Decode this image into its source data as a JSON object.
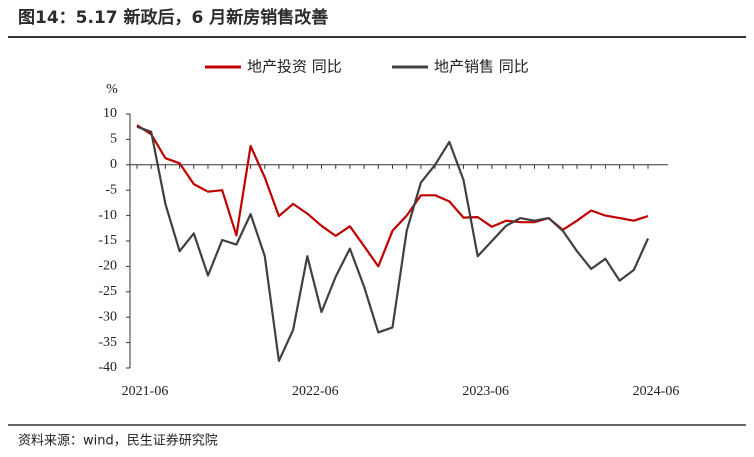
{
  "header": {
    "title": "图14：5.17 新政后，6 月新房销售改善"
  },
  "chart_data": {
    "type": "line",
    "y_unit": "%",
    "categories": [
      "2021-06",
      null,
      null,
      null,
      null,
      null,
      null,
      null,
      null,
      null,
      null,
      null,
      "2022-06",
      null,
      null,
      null,
      null,
      null,
      null,
      null,
      null,
      null,
      null,
      null,
      "2023-06",
      null,
      null,
      null,
      null,
      null,
      null,
      null,
      null,
      null,
      null,
      null,
      "2024-06"
    ],
    "series": [
      {
        "name": "地产投资 同比",
        "color": "#c00000",
        "values": [
          7.8,
          6,
          1.3,
          0.3,
          -3.8,
          -5.3,
          -5,
          -13.9,
          3.7,
          -2.5,
          -10.1,
          -7.7,
          -9.6,
          -12,
          -14,
          -12.1,
          -16,
          -20,
          -13,
          -10,
          -6,
          -6,
          -7.2,
          -10.4,
          -10.3,
          -12.2,
          -11,
          -11.3,
          -11.3,
          -10.5,
          -12.8,
          -11,
          -9,
          -10,
          -10.5,
          -11,
          -10.1
        ]
      },
      {
        "name": "地产销售 同比",
        "color": "#404040",
        "values": [
          7.5,
          6.5,
          -7.7,
          -17,
          -13.5,
          -21.8,
          -14.8,
          -15.7,
          -9.7,
          -18,
          -38.6,
          -32.5,
          -18,
          -29,
          -22,
          -16.5,
          -24,
          -33,
          -32,
          -13,
          -3.5,
          0,
          4.5,
          -3,
          -18,
          -15,
          -12,
          -10.5,
          -11,
          -10.5,
          -13,
          -17,
          -20.5,
          -18.5,
          -22.8,
          -20.7,
          -14.5
        ]
      }
    ],
    "ylim": [
      -40,
      10
    ],
    "yticks": [
      -40,
      -35,
      -30,
      -25,
      -20,
      -15,
      -10,
      -5,
      0,
      5,
      10
    ],
    "legend": "top"
  },
  "footer": {
    "source": "资料来源：wind，民生证券研究院"
  }
}
